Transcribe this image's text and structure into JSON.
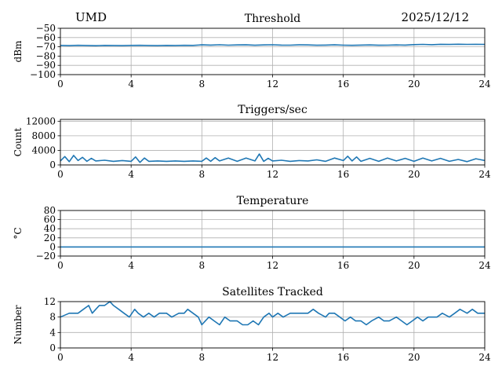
{
  "header": {
    "station": "UMD",
    "date": "2025/12/12"
  },
  "colors": {
    "line": "#1f77b4",
    "grid": "#b0b0b0",
    "axes": "#000000"
  },
  "chart_data": [
    {
      "type": "line",
      "title": "Threshold",
      "ylabel": "dBm",
      "xlim": [
        0,
        24
      ],
      "ylim": [
        -100,
        -50
      ],
      "xticks": [
        0,
        4,
        8,
        12,
        16,
        20,
        24
      ],
      "yticks": [
        -100,
        -90,
        -80,
        -70,
        -60,
        -50
      ],
      "ytick_labels": [
        "−100",
        "−90",
        "−80",
        "−70",
        "−60",
        "−50"
      ],
      "grid": true,
      "series": [
        {
          "x": [
            0,
            0.5,
            1,
            1.5,
            2,
            2.5,
            3,
            3.5,
            4,
            4.5,
            5,
            5.5,
            6,
            6.5,
            7,
            7.5,
            8,
            8.5,
            9,
            9.5,
            10,
            10.5,
            11,
            11.5,
            12,
            12.5,
            13,
            13.5,
            14,
            14.5,
            15,
            15.5,
            16,
            16.5,
            17,
            17.5,
            18,
            18.5,
            19,
            19.5,
            20,
            20.5,
            21,
            21.5,
            22,
            22.5,
            23,
            23.5,
            24
          ],
          "values": [
            -68.5,
            -68.7,
            -68.4,
            -68.6,
            -68.8,
            -68.5,
            -68.6,
            -68.7,
            -68.5,
            -68.4,
            -68.6,
            -68.7,
            -68.5,
            -68.6,
            -68.4,
            -68.5,
            -67.9,
            -68.1,
            -67.8,
            -68.2,
            -68.0,
            -67.9,
            -68.3,
            -68.0,
            -67.8,
            -68.1,
            -68.2,
            -67.9,
            -68.0,
            -68.3,
            -68.1,
            -67.9,
            -68.2,
            -68.4,
            -68.1,
            -68.0,
            -68.3,
            -68.2,
            -68.0,
            -68.1,
            -67.6,
            -67.4,
            -67.7,
            -67.3,
            -67.5,
            -67.2,
            -67.4,
            -67.3,
            -67.4
          ]
        }
      ]
    },
    {
      "type": "line",
      "title": "Triggers/sec",
      "ylabel": "Count",
      "xlim": [
        0,
        24
      ],
      "ylim": [
        0,
        12500
      ],
      "xticks": [
        0,
        4,
        8,
        12,
        16,
        20,
        24
      ],
      "yticks": [
        0,
        4000,
        8000,
        12000
      ],
      "ytick_labels": [
        "0",
        "4000",
        "8000",
        "12000"
      ],
      "grid": true,
      "series": [
        {
          "x": [
            0,
            0.25,
            0.5,
            0.75,
            1,
            1.25,
            1.5,
            1.75,
            2,
            2.5,
            3,
            3.5,
            4,
            4.25,
            4.5,
            4.75,
            5,
            5.5,
            6,
            6.5,
            7,
            7.5,
            8,
            8.25,
            8.5,
            8.75,
            9,
            9.5,
            10,
            10.5,
            11,
            11.25,
            11.5,
            11.75,
            12,
            12.5,
            13,
            13.5,
            14,
            14.5,
            15,
            15.5,
            16,
            16.25,
            16.5,
            16.75,
            17,
            17.5,
            18,
            18.5,
            19,
            19.5,
            20,
            20.5,
            21,
            21.5,
            22,
            22.5,
            23,
            23.5,
            24
          ],
          "values": [
            1100,
            2300,
            900,
            2600,
            1200,
            2100,
            1000,
            1800,
            1100,
            1300,
            1000,
            1200,
            1000,
            2200,
            700,
            1900,
            1000,
            1100,
            1000,
            1100,
            1000,
            1100,
            1000,
            1900,
            1000,
            2000,
            1100,
            1900,
            1000,
            1900,
            1100,
            3000,
            1000,
            1800,
            1100,
            1300,
            1000,
            1200,
            1100,
            1400,
            1000,
            1900,
            1200,
            2400,
            1100,
            2200,
            1000,
            1800,
            1000,
            1900,
            1100,
            1800,
            1000,
            1900,
            1100,
            1800,
            1000,
            1500,
            900,
            1700,
            1200
          ]
        }
      ]
    },
    {
      "type": "line",
      "title": "Temperature",
      "ylabel": "°C",
      "xlim": [
        0,
        24
      ],
      "ylim": [
        -20,
        80
      ],
      "xticks": [
        0,
        4,
        8,
        12,
        16,
        20,
        24
      ],
      "yticks": [
        -20,
        0,
        20,
        40,
        60,
        80
      ],
      "ytick_labels": [
        "−20",
        "0",
        "20",
        "40",
        "60",
        "80"
      ],
      "grid": true,
      "series": [
        {
          "x": [
            0,
            24
          ],
          "values": [
            0,
            0
          ]
        }
      ]
    },
    {
      "type": "line",
      "title": "Satellites Tracked",
      "ylabel": "Number",
      "xlim": [
        0,
        24
      ],
      "ylim": [
        0,
        12
      ],
      "xticks": [
        0,
        4,
        8,
        12,
        16,
        20,
        24
      ],
      "yticks": [
        0,
        4,
        8,
        12
      ],
      "ytick_labels": [
        "0",
        "4",
        "8",
        "12"
      ],
      "grid": true,
      "series": [
        {
          "x": [
            0,
            0.5,
            1,
            1.3,
            1.6,
            1.8,
            2,
            2.2,
            2.5,
            2.8,
            3,
            3.3,
            3.6,
            3.9,
            4.2,
            4.4,
            4.7,
            5,
            5.3,
            5.6,
            6,
            6.3,
            6.7,
            7,
            7.2,
            7.5,
            7.8,
            8,
            8.2,
            8.4,
            8.7,
            9,
            9.3,
            9.6,
            10,
            10.3,
            10.6,
            10.9,
            11.2,
            11.5,
            11.8,
            12,
            12.3,
            12.6,
            13,
            13.3,
            13.6,
            14,
            14.3,
            14.6,
            15,
            15.2,
            15.5,
            15.8,
            16.1,
            16.4,
            16.7,
            17,
            17.3,
            17.6,
            18,
            18.3,
            18.6,
            19,
            19.3,
            19.6,
            19.9,
            20.2,
            20.5,
            20.8,
            21,
            21.3,
            21.6,
            22,
            22.3,
            22.6,
            23,
            23.3,
            23.6,
            24
          ],
          "values": [
            8,
            9,
            9,
            10,
            11,
            9,
            10,
            11,
            11,
            12,
            11,
            10,
            9,
            8,
            10,
            9,
            8,
            9,
            8,
            9,
            9,
            8,
            9,
            9,
            10,
            9,
            8,
            6,
            7,
            8,
            7,
            6,
            8,
            7,
            7,
            6,
            6,
            7,
            6,
            8,
            9,
            8,
            9,
            8,
            9,
            9,
            9,
            9,
            10,
            9,
            8,
            9,
            9,
            8,
            7,
            8,
            7,
            7,
            6,
            7,
            8,
            7,
            7,
            8,
            7,
            6,
            7,
            8,
            7,
            8,
            8,
            8,
            9,
            8,
            9,
            10,
            9,
            10,
            9,
            9
          ]
        }
      ]
    }
  ]
}
